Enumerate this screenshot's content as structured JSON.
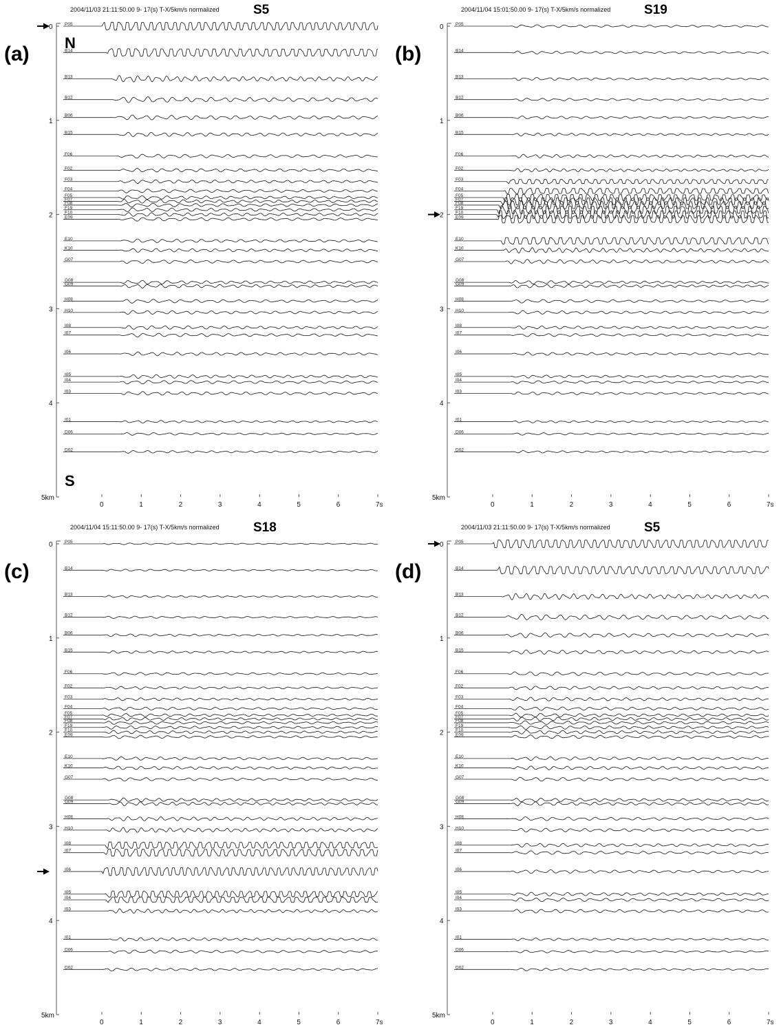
{
  "chart_data": [
    {
      "type": "line",
      "panel_label": "(a)",
      "title": "S5",
      "header": "2004/11/03 21:11:50.00   9- 17(s)    T-X/5km/s normalized",
      "xlabel": "",
      "ylabel": "",
      "xlim": [
        0,
        7
      ],
      "ylim": [
        0,
        5
      ],
      "x_ticks": [
        "0",
        "1",
        "2",
        "3",
        "4",
        "5",
        "6",
        "7s"
      ],
      "y_ticks": [
        "0",
        "1",
        "2",
        "3",
        "4",
        "5km"
      ],
      "annotations": [
        "N",
        "S"
      ],
      "source_station": "P05",
      "source_distance_km": 0,
      "arrow_distance_km": 0,
      "series": [
        {
          "name": "P05",
          "distance_km": 0.0,
          "onset_s": 0.0,
          "amp": 2.4
        },
        {
          "name": "B14",
          "distance_km": 0.28,
          "onset_s": 0.12,
          "amp": 2.3
        },
        {
          "name": "B13",
          "distance_km": 0.56,
          "onset_s": 0.22,
          "amp": 2.2
        },
        {
          "name": "B12",
          "distance_km": 0.78,
          "onset_s": 0.28,
          "amp": 2.0
        },
        {
          "name": "B06",
          "distance_km": 0.97,
          "onset_s": 0.3,
          "amp": 1.7
        },
        {
          "name": "B15",
          "distance_km": 1.15,
          "onset_s": 0.35,
          "amp": 1.5
        },
        {
          "name": "F06",
          "distance_km": 1.38,
          "onset_s": 0.38,
          "amp": 1.4
        },
        {
          "name": "F02",
          "distance_km": 1.53,
          "onset_s": 0.4,
          "amp": 1.3
        },
        {
          "name": "F03",
          "distance_km": 1.65,
          "onset_s": 0.4,
          "amp": 1.3
        },
        {
          "name": "F04",
          "distance_km": 1.75,
          "onset_s": 0.4,
          "amp": 1.3
        },
        {
          "name": "F05",
          "distance_km": 1.82,
          "onset_s": 0.4,
          "amp": 1.3
        },
        {
          "name": "F07",
          "distance_km": 1.86,
          "onset_s": 0.4,
          "amp": 1.3
        },
        {
          "name": "F08",
          "distance_km": 1.9,
          "onset_s": 0.4,
          "amp": 1.3
        },
        {
          "name": "F19",
          "distance_km": 1.95,
          "onset_s": 0.4,
          "amp": 1.3
        },
        {
          "name": "F10",
          "distance_km": 2.0,
          "onset_s": 0.4,
          "amp": 1.3
        },
        {
          "name": "E09",
          "distance_km": 2.05,
          "onset_s": 0.42,
          "amp": 1.3
        },
        {
          "name": "E10",
          "distance_km": 2.28,
          "onset_s": 0.45,
          "amp": 1.3
        },
        {
          "name": "K10",
          "distance_km": 2.38,
          "onset_s": 0.45,
          "amp": 1.3
        },
        {
          "name": "G07",
          "distance_km": 2.5,
          "onset_s": 0.45,
          "amp": 1.3
        },
        {
          "name": "G08",
          "distance_km": 2.72,
          "onset_s": 0.45,
          "amp": 1.3
        },
        {
          "name": "G09",
          "distance_km": 2.76,
          "onset_s": 0.45,
          "amp": 1.3
        },
        {
          "name": "H08",
          "distance_km": 2.92,
          "onset_s": 0.45,
          "amp": 1.3
        },
        {
          "name": "H10",
          "distance_km": 3.04,
          "onset_s": 0.45,
          "amp": 1.3
        },
        {
          "name": "I08",
          "distance_km": 3.2,
          "onset_s": 0.45,
          "amp": 1.3
        },
        {
          "name": "I07",
          "distance_km": 3.28,
          "onset_s": 0.45,
          "amp": 1.3
        },
        {
          "name": "I06",
          "distance_km": 3.48,
          "onset_s": 0.45,
          "amp": 1.3
        },
        {
          "name": "I05",
          "distance_km": 3.72,
          "onset_s": 0.45,
          "amp": 1.3
        },
        {
          "name": "I04",
          "distance_km": 3.78,
          "onset_s": 0.45,
          "amp": 1.3
        },
        {
          "name": "I03",
          "distance_km": 3.9,
          "onset_s": 0.45,
          "amp": 1.3
        },
        {
          "name": "I01",
          "distance_km": 4.2,
          "onset_s": 0.45,
          "amp": 0.9
        },
        {
          "name": "D06",
          "distance_km": 4.33,
          "onset_s": 0.45,
          "amp": 0.9
        },
        {
          "name": "D02",
          "distance_km": 4.52,
          "onset_s": 0.45,
          "amp": 0.9
        }
      ]
    },
    {
      "type": "line",
      "panel_label": "(b)",
      "title": "S19",
      "header": "2004/11/04 15:01:50.00   9- 17(s)    T-X/5km/s normalized",
      "xlabel": "",
      "ylabel": "",
      "xlim": [
        0,
        7
      ],
      "ylim": [
        0,
        5
      ],
      "x_ticks": [
        "0",
        "1",
        "2",
        "3",
        "4",
        "5",
        "6",
        "7s"
      ],
      "y_ticks": [
        "0",
        "1",
        "2",
        "3",
        "4",
        "5km"
      ],
      "source_station": "F19",
      "source_distance_km": 1.95,
      "arrow_distance_km": 2.0,
      "series": [
        {
          "name": "P05",
          "distance_km": 0.0,
          "onset_s": 0.45,
          "amp": 1.0
        },
        {
          "name": "B14",
          "distance_km": 0.28,
          "onset_s": 0.45,
          "amp": 1.0
        },
        {
          "name": "B13",
          "distance_km": 0.56,
          "onset_s": 0.45,
          "amp": 1.0
        },
        {
          "name": "B12",
          "distance_km": 0.78,
          "onset_s": 0.45,
          "amp": 1.0
        },
        {
          "name": "B06",
          "distance_km": 0.97,
          "onset_s": 0.45,
          "amp": 1.0
        },
        {
          "name": "B15",
          "distance_km": 1.15,
          "onset_s": 0.45,
          "amp": 1.0
        },
        {
          "name": "F06",
          "distance_km": 1.38,
          "onset_s": 0.45,
          "amp": 1.2
        },
        {
          "name": "F02",
          "distance_km": 1.53,
          "onset_s": 0.4,
          "amp": 1.2
        },
        {
          "name": "F03",
          "distance_km": 1.65,
          "onset_s": 0.35,
          "amp": 1.3
        },
        {
          "name": "F04",
          "distance_km": 1.75,
          "onset_s": 0.3,
          "amp": 1.6
        },
        {
          "name": "F05",
          "distance_km": 1.82,
          "onset_s": 0.25,
          "amp": 1.9
        },
        {
          "name": "F07",
          "distance_km": 1.86,
          "onset_s": 0.2,
          "amp": 2.2
        },
        {
          "name": "F08",
          "distance_km": 1.9,
          "onset_s": 0.15,
          "amp": 2.3
        },
        {
          "name": "F19",
          "distance_km": 1.95,
          "onset_s": 0.1,
          "amp": 2.4
        },
        {
          "name": "F10",
          "distance_km": 2.0,
          "onset_s": 0.1,
          "amp": 2.4
        },
        {
          "name": "E09",
          "distance_km": 2.05,
          "onset_s": 0.12,
          "amp": 2.3
        },
        {
          "name": "E10",
          "distance_km": 2.28,
          "onset_s": 0.2,
          "amp": 2.0
        },
        {
          "name": "K10",
          "distance_km": 2.38,
          "onset_s": 0.25,
          "amp": 1.9
        },
        {
          "name": "G07",
          "distance_km": 2.5,
          "onset_s": 0.3,
          "amp": 1.5
        },
        {
          "name": "G08",
          "distance_km": 2.72,
          "onset_s": 0.4,
          "amp": 1.2
        },
        {
          "name": "G09",
          "distance_km": 2.76,
          "onset_s": 0.4,
          "amp": 1.2
        },
        {
          "name": "H08",
          "distance_km": 2.92,
          "onset_s": 0.4,
          "amp": 1.2
        },
        {
          "name": "H10",
          "distance_km": 3.04,
          "onset_s": 0.4,
          "amp": 1.2
        },
        {
          "name": "I08",
          "distance_km": 3.2,
          "onset_s": 0.45,
          "amp": 1.1
        },
        {
          "name": "I07",
          "distance_km": 3.28,
          "onset_s": 0.45,
          "amp": 1.1
        },
        {
          "name": "I06",
          "distance_km": 3.48,
          "onset_s": 0.45,
          "amp": 1.1
        },
        {
          "name": "I05",
          "distance_km": 3.72,
          "onset_s": 0.45,
          "amp": 1.0
        },
        {
          "name": "I04",
          "distance_km": 3.78,
          "onset_s": 0.45,
          "amp": 1.0
        },
        {
          "name": "I03",
          "distance_km": 3.9,
          "onset_s": 0.45,
          "amp": 1.0
        },
        {
          "name": "I01",
          "distance_km": 4.2,
          "onset_s": 0.45,
          "amp": 0.8
        },
        {
          "name": "D06",
          "distance_km": 4.33,
          "onset_s": 0.45,
          "amp": 0.8
        },
        {
          "name": "D02",
          "distance_km": 4.52,
          "onset_s": 0.45,
          "amp": 0.8
        }
      ]
    },
    {
      "type": "line",
      "panel_label": "(c)",
      "title": "S18",
      "header": "2004/11/04 15:11:50.00   9- 17(s)    T-X/5km/s normalized",
      "xlabel": "",
      "ylabel": "",
      "xlim": [
        0,
        7
      ],
      "ylim": [
        0,
        5
      ],
      "x_ticks": [
        "0",
        "1",
        "2",
        "3",
        "4",
        "5",
        "6",
        "7s"
      ],
      "y_ticks": [
        "0",
        "1",
        "2",
        "3",
        "4",
        "5km"
      ],
      "source_station": "I06",
      "source_distance_km": 3.48,
      "arrow_distance_km": 3.48,
      "series": [
        {
          "name": "P05",
          "distance_km": 0.0,
          "onset_s": 0.0,
          "amp": 0.6
        },
        {
          "name": "B14",
          "distance_km": 0.28,
          "onset_s": 0.0,
          "amp": 0.7
        },
        {
          "name": "B13",
          "distance_km": 0.56,
          "onset_s": 0.0,
          "amp": 0.8
        },
        {
          "name": "B12",
          "distance_km": 0.78,
          "onset_s": 0.0,
          "amp": 0.8
        },
        {
          "name": "B06",
          "distance_km": 0.97,
          "onset_s": 0.0,
          "amp": 0.9
        },
        {
          "name": "B15",
          "distance_km": 1.15,
          "onset_s": 0.0,
          "amp": 0.9
        },
        {
          "name": "F06",
          "distance_km": 1.38,
          "onset_s": 0.0,
          "amp": 1.0
        },
        {
          "name": "F02",
          "distance_km": 1.53,
          "onset_s": 0.0,
          "amp": 1.0
        },
        {
          "name": "F03",
          "distance_km": 1.65,
          "onset_s": 0.0,
          "amp": 1.0
        },
        {
          "name": "F04",
          "distance_km": 1.75,
          "onset_s": 0.0,
          "amp": 1.1
        },
        {
          "name": "F05",
          "distance_km": 1.82,
          "onset_s": 0.0,
          "amp": 1.1
        },
        {
          "name": "F07",
          "distance_km": 1.86,
          "onset_s": 0.0,
          "amp": 1.1
        },
        {
          "name": "F08",
          "distance_km": 1.9,
          "onset_s": 0.0,
          "amp": 1.1
        },
        {
          "name": "F19",
          "distance_km": 1.95,
          "onset_s": 0.0,
          "amp": 1.1
        },
        {
          "name": "F10",
          "distance_km": 2.0,
          "onset_s": 0.0,
          "amp": 1.1
        },
        {
          "name": "E09",
          "distance_km": 2.05,
          "onset_s": 0.0,
          "amp": 1.1
        },
        {
          "name": "E10",
          "distance_km": 2.28,
          "onset_s": 0.0,
          "amp": 1.2
        },
        {
          "name": "K10",
          "distance_km": 2.38,
          "onset_s": 0.0,
          "amp": 1.2
        },
        {
          "name": "G07",
          "distance_km": 2.5,
          "onset_s": 0.0,
          "amp": 1.2
        },
        {
          "name": "G08",
          "distance_km": 2.72,
          "onset_s": 0.15,
          "amp": 1.3
        },
        {
          "name": "G09",
          "distance_km": 2.76,
          "onset_s": 0.15,
          "amp": 1.3
        },
        {
          "name": "H08",
          "distance_km": 2.92,
          "onset_s": 0.12,
          "amp": 1.5
        },
        {
          "name": "H10",
          "distance_km": 3.04,
          "onset_s": 0.1,
          "amp": 1.7
        },
        {
          "name": "I08",
          "distance_km": 3.2,
          "onset_s": 0.08,
          "amp": 1.9
        },
        {
          "name": "I07",
          "distance_km": 3.28,
          "onset_s": 0.06,
          "amp": 2.1
        },
        {
          "name": "I06",
          "distance_km": 3.48,
          "onset_s": 0.0,
          "amp": 2.4
        },
        {
          "name": "I05",
          "distance_km": 3.72,
          "onset_s": 0.08,
          "amp": 1.8
        },
        {
          "name": "I04",
          "distance_km": 3.78,
          "onset_s": 0.1,
          "amp": 1.7
        },
        {
          "name": "I03",
          "distance_km": 3.9,
          "onset_s": 0.12,
          "amp": 1.5
        },
        {
          "name": "I01",
          "distance_km": 4.2,
          "onset_s": 0.15,
          "amp": 1.2
        },
        {
          "name": "D06",
          "distance_km": 4.33,
          "onset_s": 0.15,
          "amp": 1.2
        },
        {
          "name": "D02",
          "distance_km": 4.52,
          "onset_s": 0.0,
          "amp": 1.0
        }
      ]
    },
    {
      "type": "line",
      "panel_label": "(d)",
      "title": "S5",
      "header": "2004/11/03 21:11:50.00   9- 17(s)    T-X/5km/s normalized",
      "xlabel": "",
      "ylabel": "",
      "xlim": [
        0,
        7
      ],
      "ylim": [
        0,
        5
      ],
      "x_ticks": [
        "0",
        "1",
        "2",
        "3",
        "4",
        "5",
        "6",
        "7s"
      ],
      "y_ticks": [
        "0",
        "1",
        "2",
        "3",
        "4",
        "5km"
      ],
      "source_station": "P05",
      "source_distance_km": 0,
      "arrow_distance_km": 0,
      "series": [
        {
          "name": "P05",
          "distance_km": 0.0,
          "onset_s": 0.0,
          "amp": 2.4
        },
        {
          "name": "B14",
          "distance_km": 0.28,
          "onset_s": 0.12,
          "amp": 2.3
        },
        {
          "name": "B13",
          "distance_km": 0.56,
          "onset_s": 0.22,
          "amp": 2.2
        },
        {
          "name": "B12",
          "distance_km": 0.78,
          "onset_s": 0.28,
          "amp": 2.0
        },
        {
          "name": "B06",
          "distance_km": 0.97,
          "onset_s": 0.3,
          "amp": 1.7
        },
        {
          "name": "B15",
          "distance_km": 1.15,
          "onset_s": 0.35,
          "amp": 1.5
        },
        {
          "name": "F06",
          "distance_km": 1.38,
          "onset_s": 0.38,
          "amp": 1.4
        },
        {
          "name": "F02",
          "distance_km": 1.53,
          "onset_s": 0.4,
          "amp": 1.3
        },
        {
          "name": "F03",
          "distance_km": 1.65,
          "onset_s": 0.4,
          "amp": 1.3
        },
        {
          "name": "F04",
          "distance_km": 1.75,
          "onset_s": 0.4,
          "amp": 1.3
        },
        {
          "name": "F05",
          "distance_km": 1.82,
          "onset_s": 0.4,
          "amp": 1.3
        },
        {
          "name": "F07",
          "distance_km": 1.86,
          "onset_s": 0.4,
          "amp": 1.3
        },
        {
          "name": "F08",
          "distance_km": 1.9,
          "onset_s": 0.4,
          "amp": 1.3
        },
        {
          "name": "F19",
          "distance_km": 1.95,
          "onset_s": 0.4,
          "amp": 1.3
        },
        {
          "name": "F10",
          "distance_km": 2.0,
          "onset_s": 0.4,
          "amp": 1.3
        },
        {
          "name": "E09",
          "distance_km": 2.05,
          "onset_s": 0.42,
          "amp": 1.3
        },
        {
          "name": "E10",
          "distance_km": 2.28,
          "onset_s": 0.45,
          "amp": 1.3
        },
        {
          "name": "K10",
          "distance_km": 2.38,
          "onset_s": 0.45,
          "amp": 1.3
        },
        {
          "name": "G07",
          "distance_km": 2.5,
          "onset_s": 0.45,
          "amp": 1.3
        },
        {
          "name": "G08",
          "distance_km": 2.72,
          "onset_s": 0.45,
          "amp": 1.3
        },
        {
          "name": "G09",
          "distance_km": 2.76,
          "onset_s": 0.45,
          "amp": 1.3
        },
        {
          "name": "H08",
          "distance_km": 2.92,
          "onset_s": 0.45,
          "amp": 1.3
        },
        {
          "name": "H10",
          "distance_km": 3.04,
          "onset_s": 0.45,
          "amp": 1.3
        },
        {
          "name": "I08",
          "distance_km": 3.2,
          "onset_s": 0.45,
          "amp": 1.3
        },
        {
          "name": "I07",
          "distance_km": 3.28,
          "onset_s": 0.45,
          "amp": 1.3
        },
        {
          "name": "I06",
          "distance_km": 3.48,
          "onset_s": 0.45,
          "amp": 1.3
        },
        {
          "name": "I05",
          "distance_km": 3.72,
          "onset_s": 0.45,
          "amp": 1.3
        },
        {
          "name": "I04",
          "distance_km": 3.78,
          "onset_s": 0.45,
          "amp": 1.3
        },
        {
          "name": "I03",
          "distance_km": 3.9,
          "onset_s": 0.45,
          "amp": 1.3
        },
        {
          "name": "I01",
          "distance_km": 4.2,
          "onset_s": 0.45,
          "amp": 0.9
        },
        {
          "name": "D06",
          "distance_km": 4.33,
          "onset_s": 0.45,
          "amp": 0.9
        },
        {
          "name": "D02",
          "distance_km": 4.52,
          "onset_s": 0.45,
          "amp": 0.9
        }
      ]
    }
  ]
}
